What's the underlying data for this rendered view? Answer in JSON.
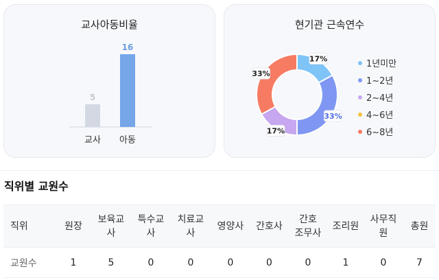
{
  "teacher_child_ratio": {
    "title": "교사아동비율",
    "chart_data": {
      "type": "bar",
      "categories": [
        "교사",
        "아동"
      ],
      "values": [
        5,
        16
      ],
      "colors": [
        "#d3d8e3",
        "#74a6e8"
      ],
      "value_label_colors": [
        "#c4c8d0",
        "#6d9edf"
      ]
    }
  },
  "tenure": {
    "title": "현기관 근속연수",
    "chart_data": {
      "type": "pie",
      "donut": true,
      "categories": [
        "1년미만",
        "1~2년",
        "2~4년",
        "4~6년",
        "6~8년"
      ],
      "values": [
        17,
        33,
        17,
        0,
        33
      ],
      "labels": [
        "17%",
        "33%",
        "17%",
        "",
        "33%"
      ],
      "colors": [
        "#7ec4f7",
        "#7f97f2",
        "#c7a7ef",
        "#f4c23f",
        "#f77b62"
      ],
      "label_colors": [
        "#222222",
        "#4f6fe0",
        "#222222",
        "#222222",
        "#222222"
      ],
      "legend_position": "right"
    }
  },
  "staff_section": {
    "title": "직위별 교원수",
    "headers": [
      "직위",
      "원장",
      "보육교사",
      "특수교사",
      "치료교사",
      "영양사",
      "간호사",
      "간호조무사",
      "조리원",
      "사무직원",
      "총원"
    ],
    "row_label": "교원수",
    "values": [
      "1",
      "5",
      "0",
      "0",
      "0",
      "0",
      "0",
      "1",
      "0",
      "7"
    ]
  }
}
